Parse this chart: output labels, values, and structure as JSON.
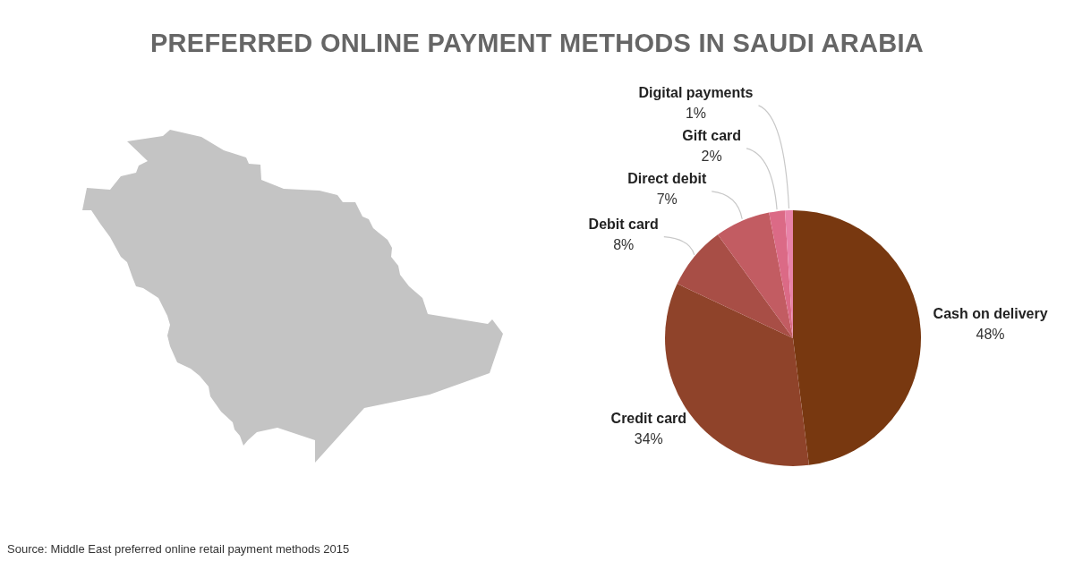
{
  "chart_data": {
    "type": "pie",
    "title": "PREFERRED ONLINE PAYMENT METHODS IN SAUDI ARABIA",
    "categories": [
      "Cash on delivery",
      "Credit card",
      "Debit card",
      "Direct debit",
      "Gift card",
      "Digital payments"
    ],
    "values": [
      48,
      34,
      8,
      7,
      2,
      1
    ],
    "colors": [
      "#783810",
      "#8f432a",
      "#a84e46",
      "#c25c62",
      "#db6a86",
      "#e882a8"
    ],
    "value_labels": [
      "48%",
      "34%",
      "8%",
      "7%",
      "2%",
      "1%"
    ],
    "annotations": [
      "Source: Middle East preferred online retail payment methods 2015"
    ]
  }
}
